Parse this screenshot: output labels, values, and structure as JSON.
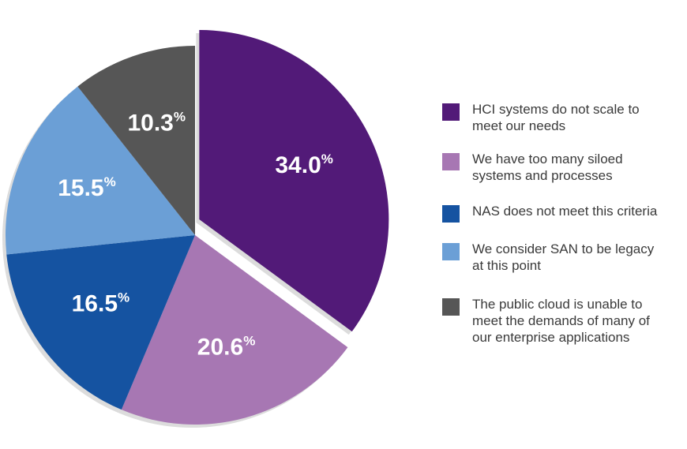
{
  "chart_data": {
    "type": "pie",
    "title": "",
    "categories": [
      "HCI systems do not scale to\nmeet our needs",
      "We have too many siloed\nsystems and processes",
      "NAS does not meet this criteria",
      "We consider SAN to be legacy\nat this point",
      "The public cloud is unable to\nmeet the demands of many of\nour enterprise applications"
    ],
    "values": [
      34.0,
      20.6,
      16.5,
      15.5,
      10.3
    ],
    "value_labels": [
      "34.0",
      "20.6",
      "16.5",
      "15.5",
      "10.3"
    ],
    "value_suffix": "%",
    "colors": [
      "#521a78",
      "#a777b3",
      "#1553a1",
      "#6b9fd6",
      "#565656"
    ],
    "start": "12 o'clock",
    "direction": "clockwise",
    "exploded_slice": "HCI systems do not scale to\nmeet our needs",
    "legend_position": "right"
  }
}
